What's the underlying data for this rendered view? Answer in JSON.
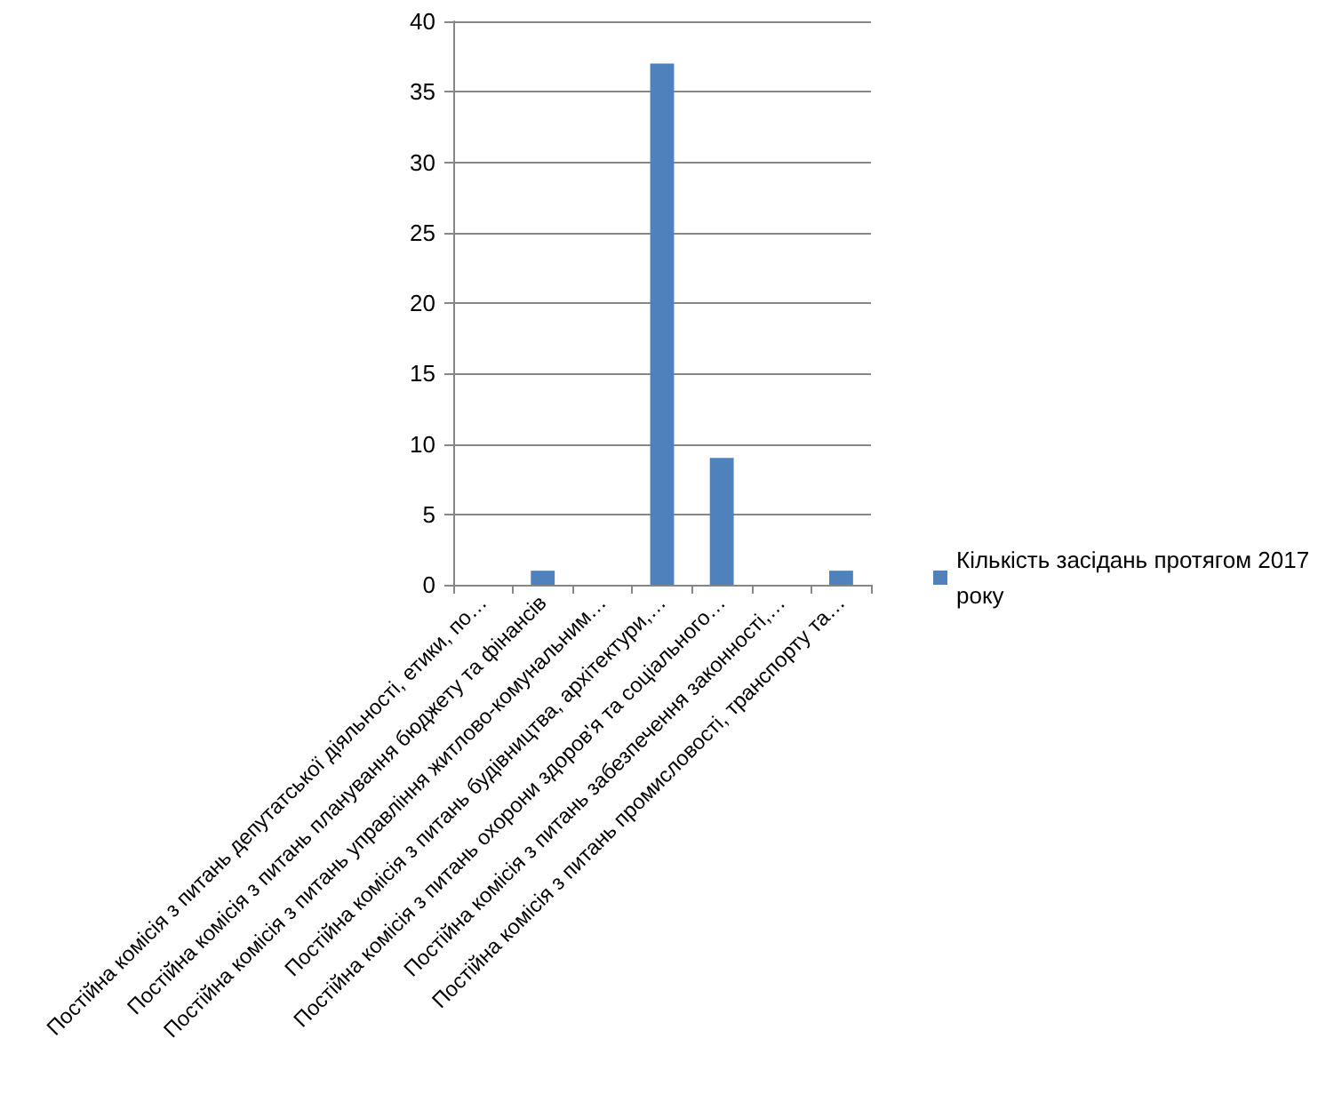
{
  "chart_data": {
    "type": "bar",
    "categories": [
      "Постійна комісія з питань депутатської діяльності, етики, по…",
      "Постійна комісія з питань планування бюджету та фінансів",
      "Постійна комісія з питань управління житлово-комунальним…",
      "Постійна комісія з питань будівництва, архітектури,…",
      "Постійна комісія з питань охорони здоров'я та соціального…",
      "Постійна комісія з питань забезпечення законності,…",
      "Постійна комісія з питань промисловості, транспорту та…"
    ],
    "series": [
      {
        "name": "Кількість засідань протягом 2017 року",
        "color": "#4f81bd",
        "values": [
          0,
          1,
          0,
          37,
          9,
          0,
          1
        ]
      }
    ],
    "ylim": [
      0,
      40
    ],
    "yticks": [
      0,
      5,
      10,
      15,
      20,
      25,
      30,
      35,
      40
    ],
    "grid": "y",
    "legend": "right"
  }
}
